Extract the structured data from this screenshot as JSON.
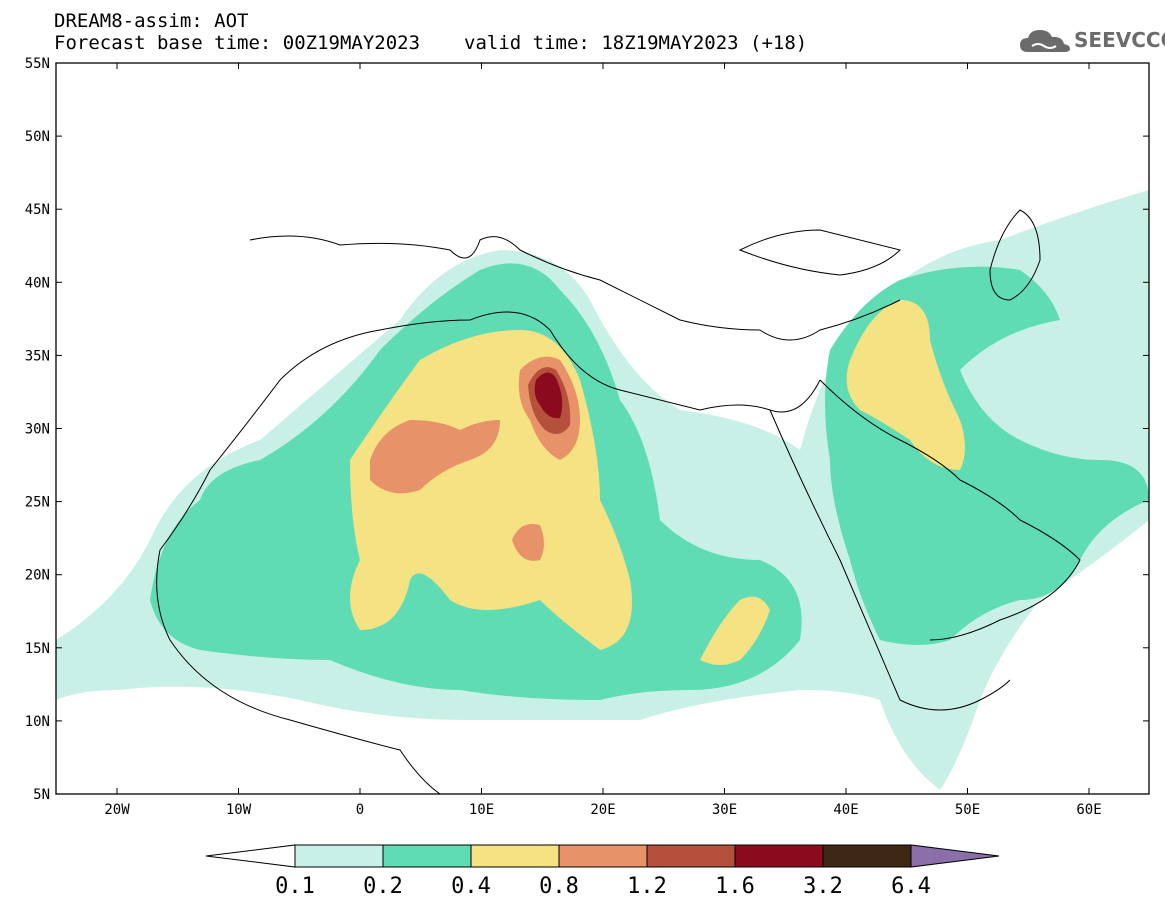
{
  "header": {
    "line1": "DREAM8-assim: AOT",
    "forecast_base": "Forecast base time: 00Z19MAY2023",
    "valid_time": "valid time: 18Z19MAY2023 (+18)"
  },
  "logo": {
    "text": "SEEVCCC",
    "icon": "cloud-logo-icon"
  },
  "axes": {
    "lat_labels": [
      "55N",
      "50N",
      "45N",
      "40N",
      "35N",
      "30N",
      "25N",
      "20N",
      "15N",
      "10N",
      "5N"
    ],
    "lon_labels": [
      "20W",
      "10W",
      "0",
      "10E",
      "20E",
      "30E",
      "40E",
      "50E",
      "60E"
    ]
  },
  "colorbar": {
    "labels": [
      "0.1",
      "0.2",
      "0.4",
      "0.8",
      "1.2",
      "1.6",
      "3.2",
      "6.4"
    ],
    "colors": [
      "#ffffff",
      "#c8f0e6",
      "#5fdcb4",
      "#f5e282",
      "#e8926a",
      "#b4503c",
      "#8c0a1e",
      "#3c2814",
      "#8c6eaa"
    ]
  }
}
